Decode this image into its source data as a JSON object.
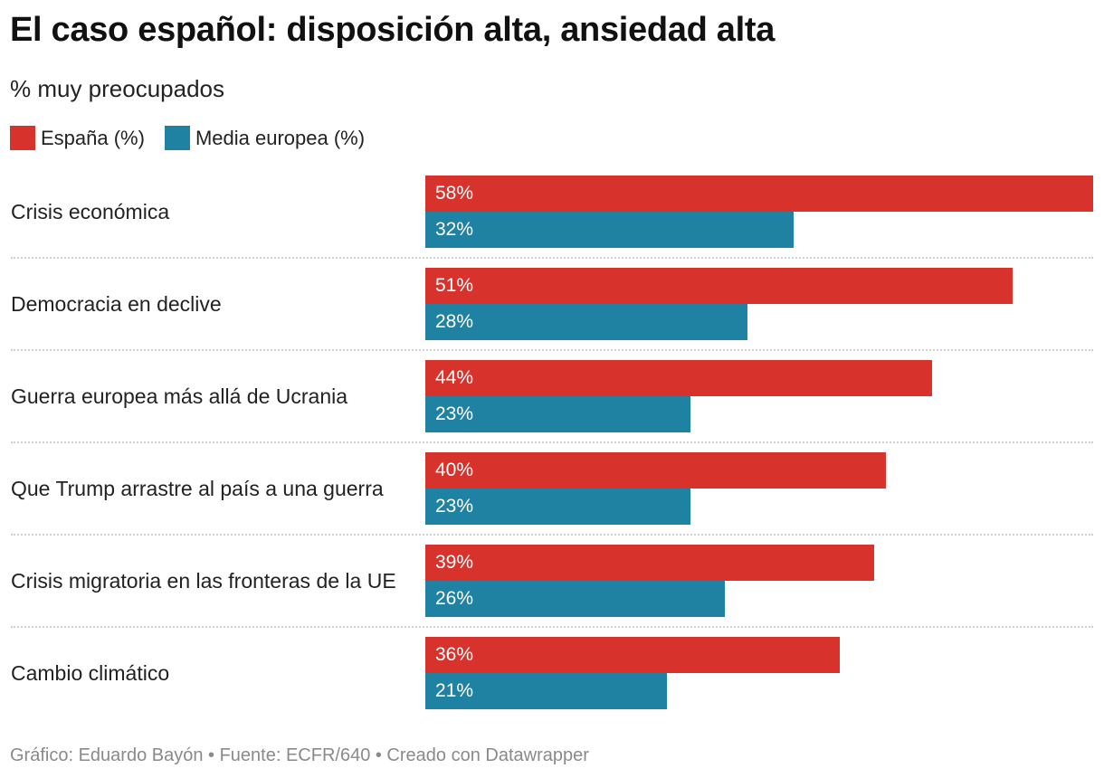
{
  "title": "El caso español: disposición alta, ansiedad alta",
  "subtitle": "% muy preocupados",
  "footer": "Gráfico: Eduardo Bayón • Fuente: ECFR/640 • Creado con Datawrapper",
  "legend": [
    {
      "label": "España (%)",
      "color": "#d7322b"
    },
    {
      "label": "Media europea (%)",
      "color": "#1f82a3"
    }
  ],
  "chart_data": {
    "type": "bar",
    "orientation": "horizontal",
    "title": "El caso español: disposición alta, ansiedad alta",
    "subtitle": "% muy preocupados",
    "categories": [
      "Crisis económica",
      "Democracia en declive",
      "Guerra europea más allá de Ucrania",
      "Que Trump arrastre al país a una guerra",
      "Crisis migratoria en las fronteras de la UE",
      "Cambio climático"
    ],
    "series": [
      {
        "name": "España (%)",
        "color": "#d7322b",
        "values": [
          58,
          51,
          44,
          40,
          39,
          36
        ]
      },
      {
        "name": "Media europea (%)",
        "color": "#1f82a3",
        "values": [
          32,
          28,
          23,
          23,
          26,
          21
        ]
      }
    ],
    "value_suffix": "%",
    "xlim": [
      0,
      58
    ],
    "grid": false,
    "legend_position": "top-left"
  }
}
